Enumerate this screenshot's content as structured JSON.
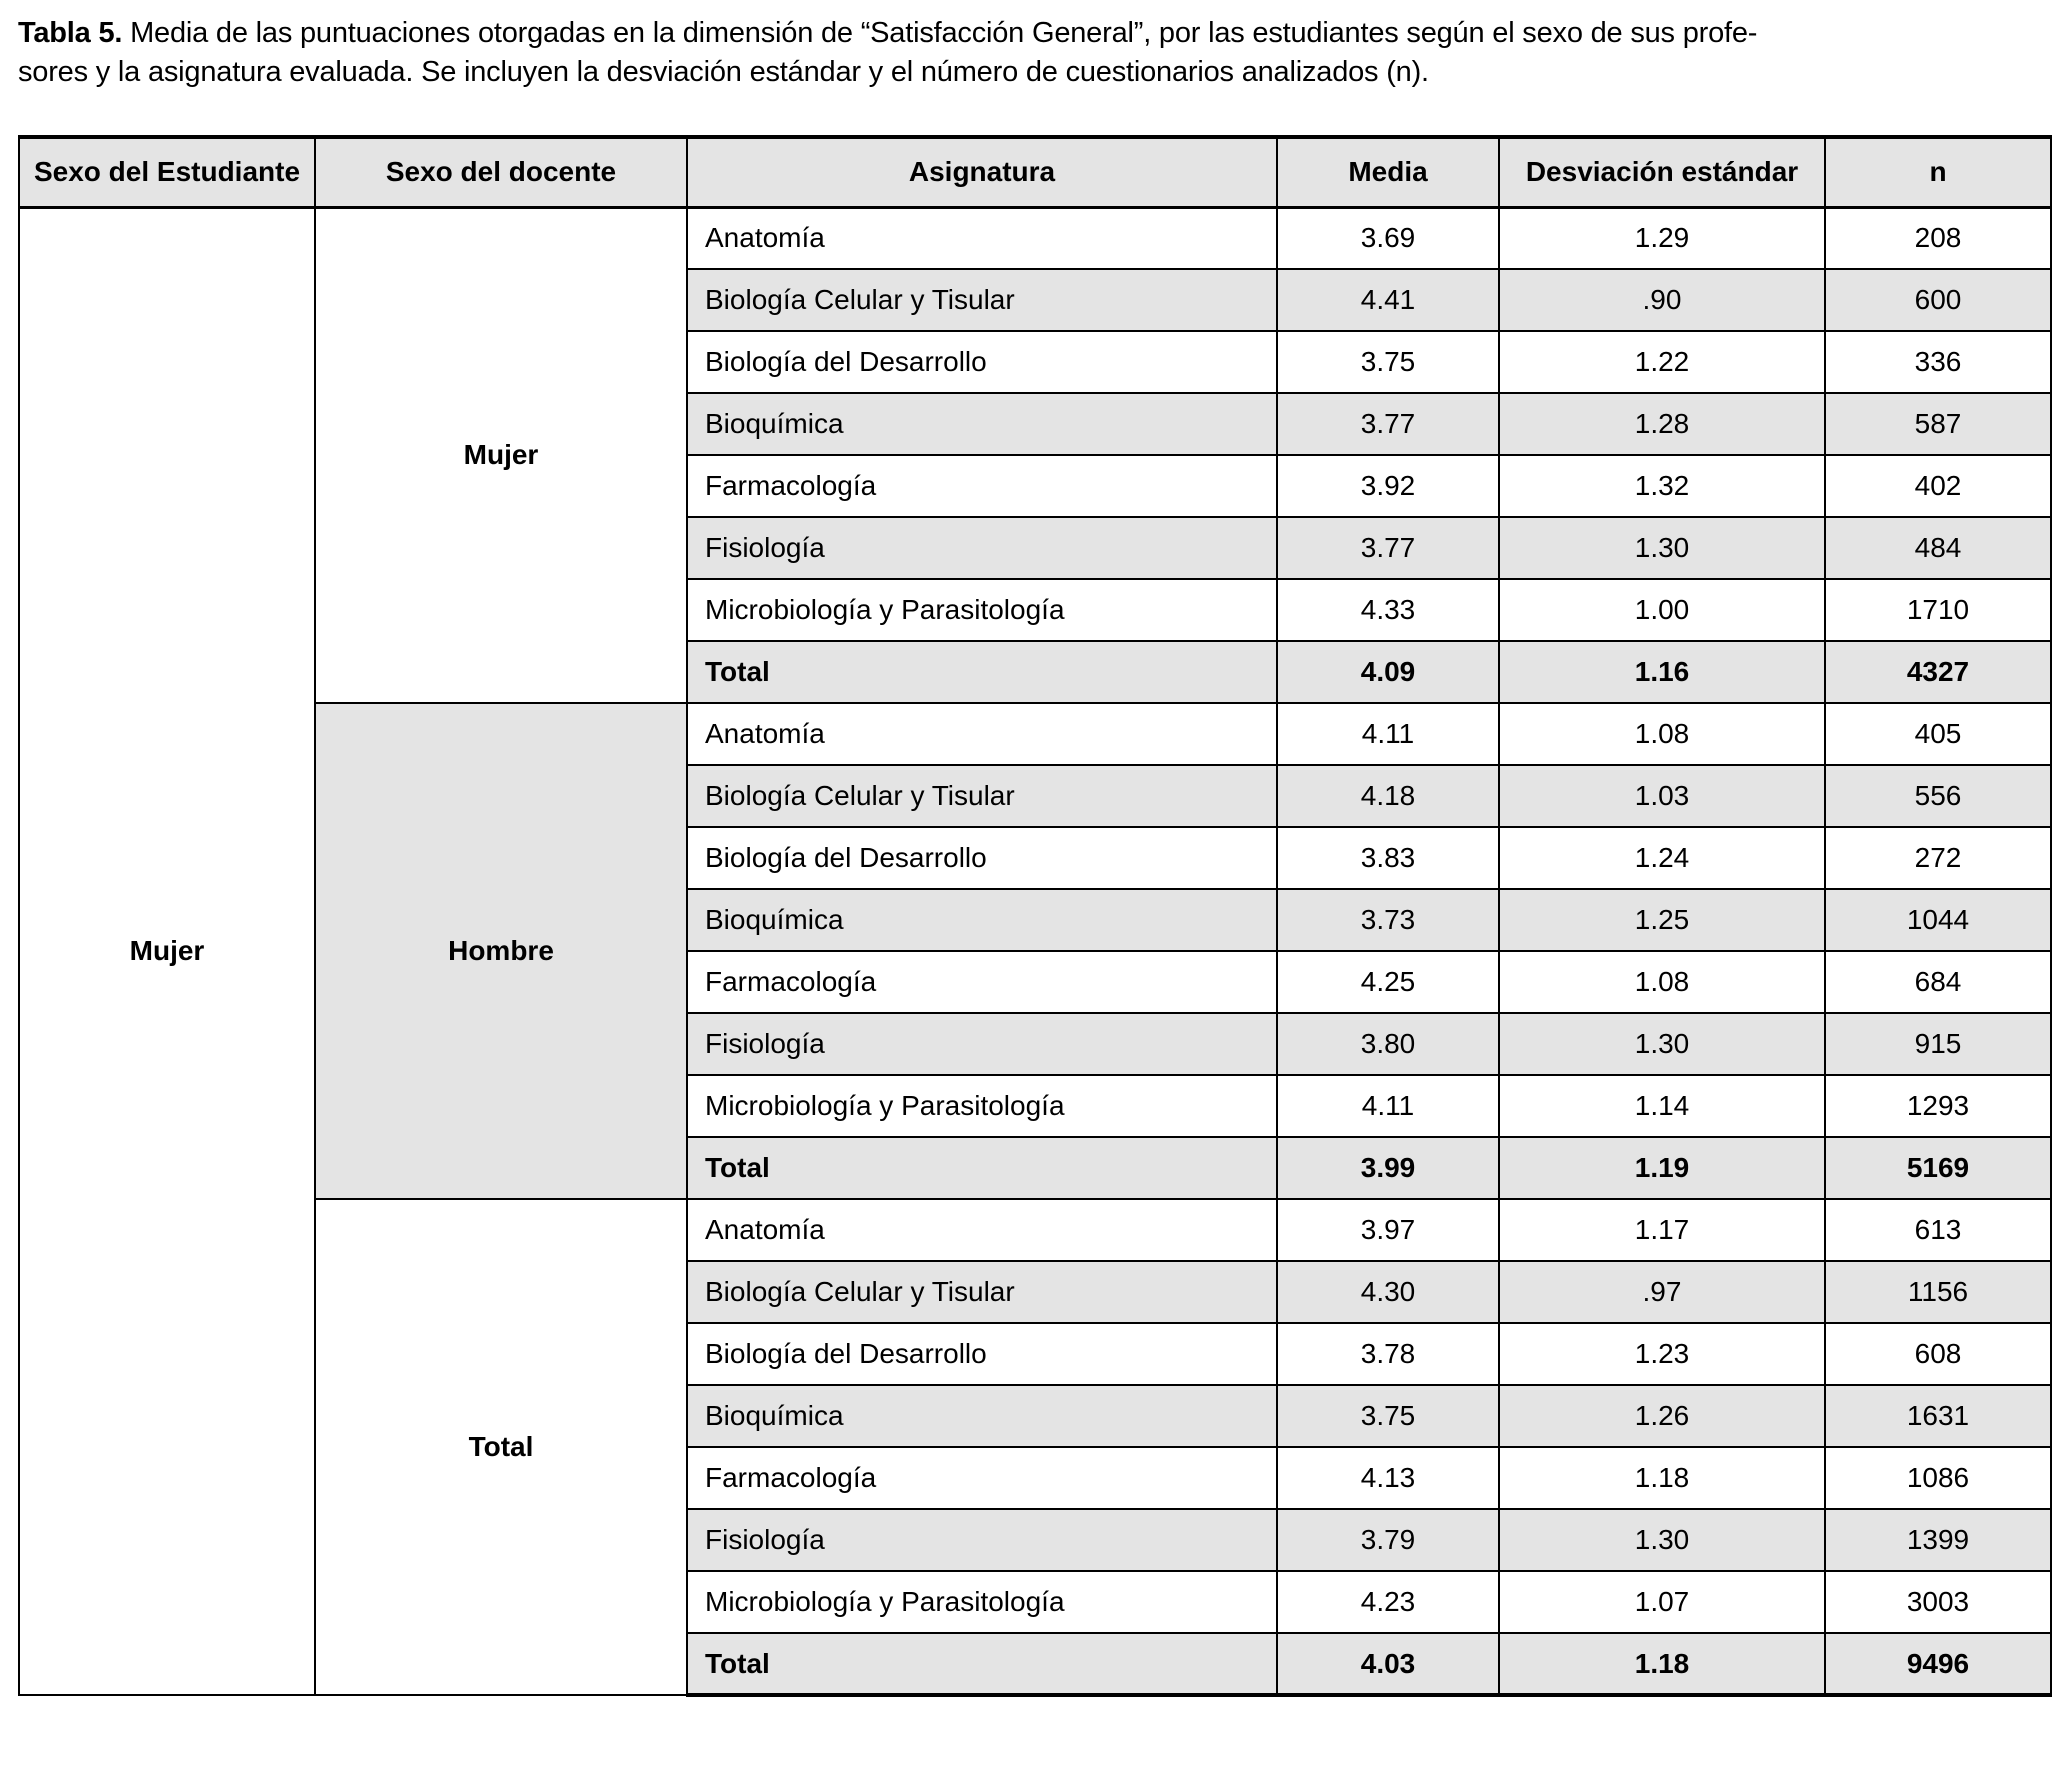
{
  "caption": {
    "label": "Tabla 5.",
    "line1": " Media de las puntuaciones otorgadas en la dimensión de “Satisfacción General”, por las estudiantes según el sexo de sus profe-",
    "line2": "sores y la asignatura evaluada. Se incluyen la desviación estándar y el número de cuestionarios analizados (n)."
  },
  "table": {
    "headers": [
      "Sexo del Estudiante",
      "Sexo del docente",
      "Asignatura",
      "Media",
      "Desviación estándar",
      "n"
    ],
    "student_label": "Mujer",
    "groups": [
      {
        "docente": "Mujer",
        "shaded": false,
        "rows": [
          [
            "Anatomía",
            "3.69",
            "1.29",
            "208"
          ],
          [
            "Biología Celular y Tisular",
            "4.41",
            ".90",
            "600"
          ],
          [
            "Biología del Desarrollo",
            "3.75",
            "1.22",
            "336"
          ],
          [
            "Bioquímica",
            "3.77",
            "1.28",
            "587"
          ],
          [
            "Farmacología",
            "3.92",
            "1.32",
            "402"
          ],
          [
            "Fisiología",
            "3.77",
            "1.30",
            "484"
          ],
          [
            "Microbiología y Parasitología",
            "4.33",
            "1.00",
            "1710"
          ],
          [
            "Total",
            "4.09",
            "1.16",
            "4327"
          ]
        ]
      },
      {
        "docente": "Hombre",
        "shaded": true,
        "rows": [
          [
            "Anatomía",
            "4.11",
            "1.08",
            "405"
          ],
          [
            "Biología Celular y Tisular",
            "4.18",
            "1.03",
            "556"
          ],
          [
            "Biología del Desarrollo",
            "3.83",
            "1.24",
            "272"
          ],
          [
            "Bioquímica",
            "3.73",
            "1.25",
            "1044"
          ],
          [
            "Farmacología",
            "4.25",
            "1.08",
            "684"
          ],
          [
            "Fisiología",
            "3.80",
            "1.30",
            "915"
          ],
          [
            "Microbiología y Parasitología",
            "4.11",
            "1.14",
            "1293"
          ],
          [
            "Total",
            "3.99",
            "1.19",
            "5169"
          ]
        ]
      },
      {
        "docente": "Total",
        "shaded": false,
        "rows": [
          [
            "Anatomía",
            "3.97",
            "1.17",
            "613"
          ],
          [
            "Biología Celular y Tisular",
            "4.30",
            ".97",
            "1156"
          ],
          [
            "Biología del Desarrollo",
            "3.78",
            "1.23",
            "608"
          ],
          [
            "Bioquímica",
            "3.75",
            "1.26",
            "1631"
          ],
          [
            "Farmacología",
            "4.13",
            "1.18",
            "1086"
          ],
          [
            "Fisiología",
            "3.79",
            "1.30",
            "1399"
          ],
          [
            "Microbiología y Parasitología",
            "4.23",
            "1.07",
            "3003"
          ],
          [
            "Total",
            "4.03",
            "1.18",
            "9496"
          ]
        ]
      }
    ]
  },
  "colors": {
    "zebra_and_header_bg": "#e4e4e4",
    "border": "#000000",
    "text": "#000000",
    "background": "#ffffff"
  }
}
